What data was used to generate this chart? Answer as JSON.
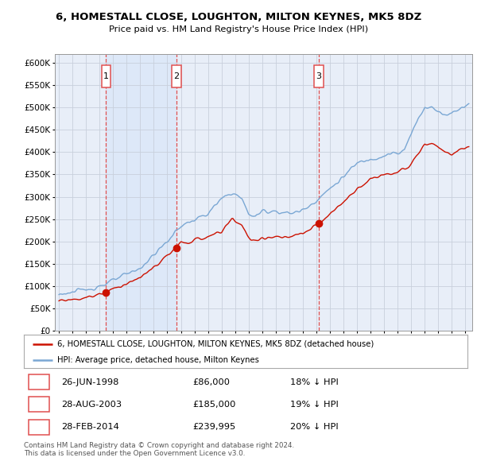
{
  "title": "6, HOMESTALL CLOSE, LOUGHTON, MILTON KEYNES, MK5 8DZ",
  "subtitle": "Price paid vs. HM Land Registry's House Price Index (HPI)",
  "ylim": [
    0,
    620000
  ],
  "yticks": [
    0,
    50000,
    100000,
    150000,
    200000,
    250000,
    300000,
    350000,
    400000,
    450000,
    500000,
    550000,
    600000
  ],
  "ytick_labels": [
    "£0",
    "£50K",
    "£100K",
    "£150K",
    "£200K",
    "£250K",
    "£300K",
    "£350K",
    "£400K",
    "£450K",
    "£500K",
    "£550K",
    "£600K"
  ],
  "xlim_start": 1994.7,
  "xlim_end": 2025.5,
  "sales": [
    {
      "num": 1,
      "year": 1998.484,
      "price": 86000,
      "date": "26-JUN-1998",
      "pct": "18%"
    },
    {
      "num": 2,
      "year": 2003.659,
      "price": 185000,
      "date": "28-AUG-2003",
      "pct": "19%"
    },
    {
      "num": 3,
      "year": 2014.163,
      "price": 239995,
      "date": "28-FEB-2014",
      "pct": "20%"
    }
  ],
  "hpi_color": "#7aa7d4",
  "sale_color": "#cc1100",
  "dashed_color": "#e05050",
  "bg_color": "#e8eef8",
  "shade_color": "#dde6f4",
  "plot_bg": "#ffffff",
  "grid_color": "#c8d0dc",
  "legend_label_property": "6, HOMESTALL CLOSE, LOUGHTON, MILTON KEYNES, MK5 8DZ (detached house)",
  "legend_label_hpi": "HPI: Average price, detached house, Milton Keynes",
  "footer": "Contains HM Land Registry data © Crown copyright and database right 2024.\nThis data is licensed under the Open Government Licence v3.0."
}
